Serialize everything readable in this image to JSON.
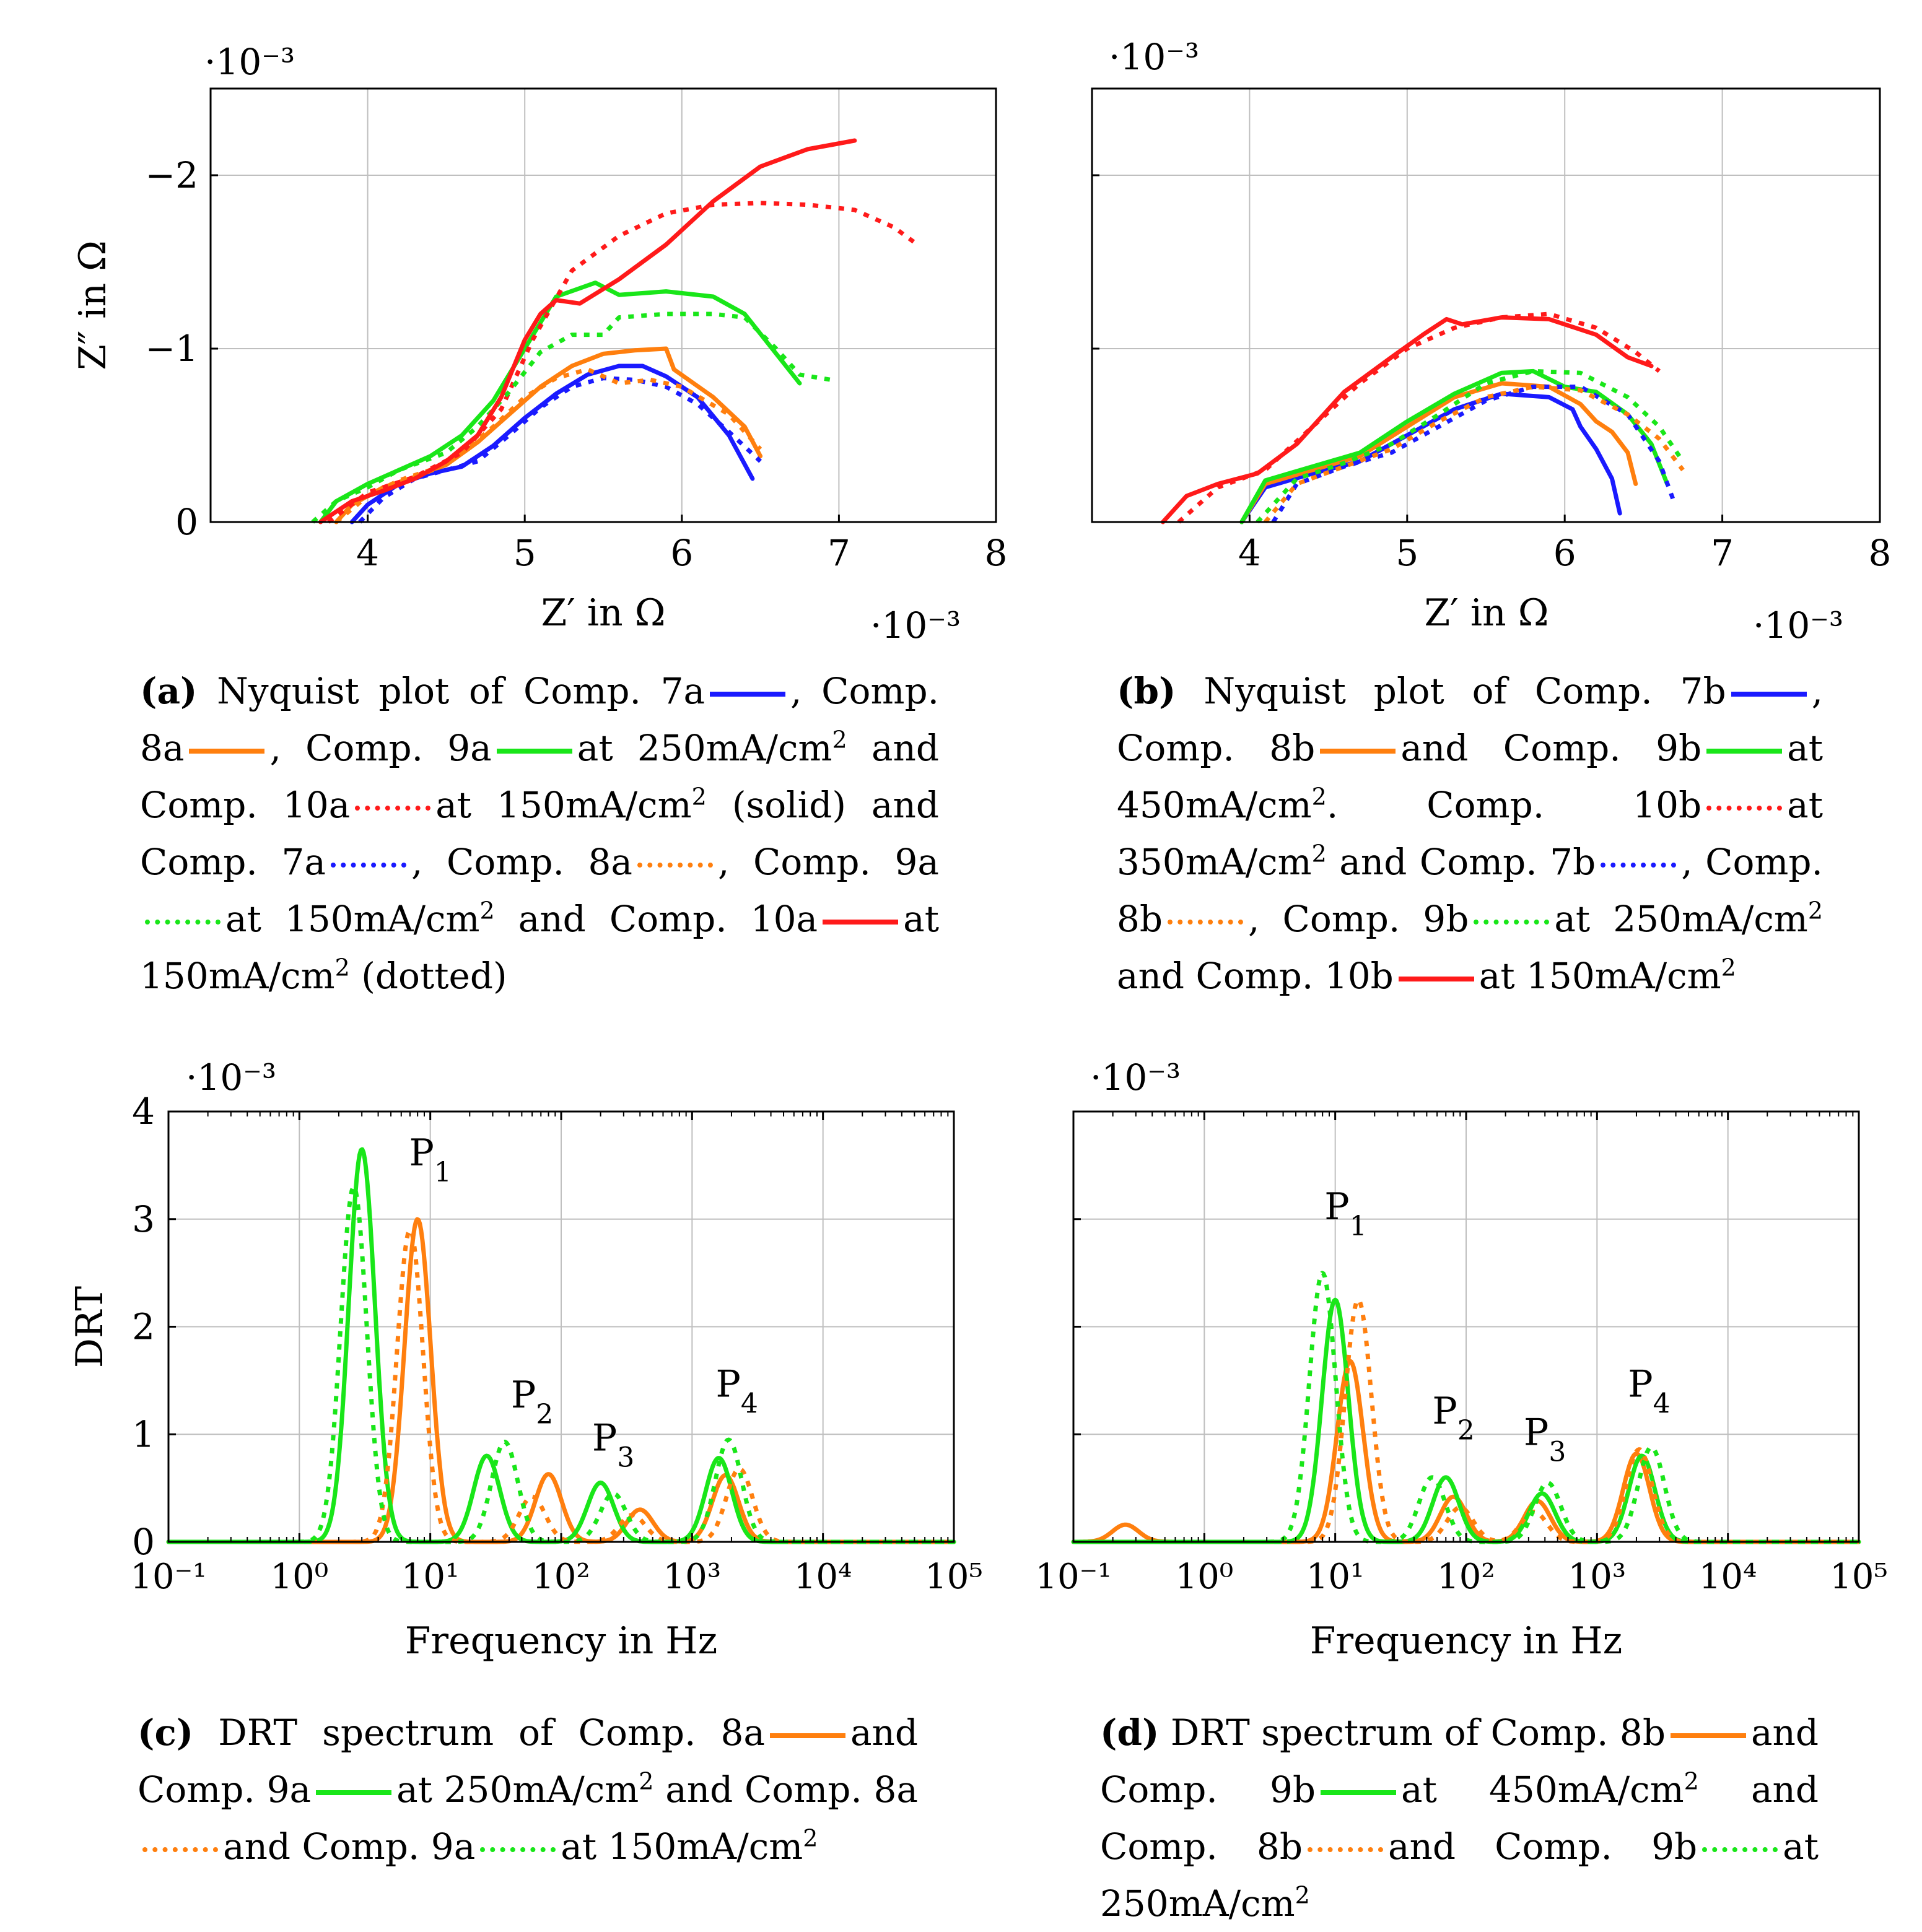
{
  "colors": {
    "blue": "#1a1aff",
    "orange": "#ff7f0e",
    "green": "#19e619",
    "red": "#ff1a1a"
  },
  "panels": [
    {
      "id": "a",
      "ylabel": "Z″ in Ω",
      "xlabel": "Z′ in Ω",
      "ymult": "·10⁻³",
      "xmult": "·10⁻³",
      "yticks": [
        "0",
        "−1",
        "−2"
      ],
      "xticks": [
        "4",
        "5",
        "6",
        "7",
        "8"
      ]
    },
    {
      "id": "b",
      "ylabel": "",
      "xlabel": "Z′ in Ω",
      "ymult": "·10⁻³",
      "xmult": "·10⁻³",
      "yticks": [],
      "xticks": [
        "4",
        "5",
        "6",
        "7",
        "8"
      ]
    },
    {
      "id": "c",
      "ylabel": "DRT",
      "xlabel": "Frequency in Hz",
      "ymult": "·10⁻³",
      "yticks": [
        "0",
        "1",
        "2",
        "3",
        "4"
      ],
      "xticks": [
        "10⁻¹",
        "10⁰",
        "10¹",
        "10²",
        "10³",
        "10⁴",
        "10⁵"
      ],
      "peaks": [
        "P1",
        "P2",
        "P3",
        "P4"
      ]
    },
    {
      "id": "d",
      "ylabel": "",
      "xlabel": "Frequency in Hz",
      "ymult": "·10⁻³",
      "yticks": [],
      "xticks": [
        "10⁻¹",
        "10⁰",
        "10¹",
        "10²",
        "10³",
        "10⁴",
        "10⁵"
      ],
      "peaks": [
        "P1",
        "P2",
        "P3",
        "P4"
      ]
    }
  ],
  "captions": {
    "a": {
      "tag": "(a)",
      "t1": "Nyquist plot of Comp. 7a",
      "t2": ", Comp. 8a",
      "t3": ", Comp. 9a",
      "t4": "at 250mA/cm",
      "t5": "and Comp. 10a",
      "t6": "at 150mA/cm",
      "t7": "(solid) and Comp. 7a",
      "t8": ", Comp. 8a",
      "t9": ", Comp. 9a",
      "t10": "at 150mA/cm",
      "t11": "and Comp. 10a",
      "t12": "at 150mA/cm",
      "t13": "(dotted)",
      "sup": "2"
    },
    "b": {
      "tag": "(b)",
      "t1": "Nyquist plot of Comp. 7b",
      "t2": ", Comp. 8b",
      "t3": "and Comp. 9b",
      "t4": "at 450mA/cm",
      "t5": ". Comp. 10b",
      "t6": "at 350mA/cm",
      "t7": "and Comp. 7b",
      "t8": ", Comp. 8b",
      "t9": ", Comp. 9b",
      "t10": "at 250mA/cm",
      "t11": "and Comp. 10b",
      "t12": "at 150mA/cm",
      "sup": "2"
    },
    "c": {
      "tag": "(c)",
      "t1": "DRT spectrum of Comp. 8a",
      "t2": "and Comp. 9a",
      "t3": "at 250mA/cm",
      "t4": "and Comp. 8a",
      "t5": "and Comp. 9a",
      "t6": "at 150mA/cm",
      "sup": "2"
    },
    "d": {
      "tag": "(d)",
      "t1": "DRT spectrum of Comp. 8b",
      "t2": "and Comp. 9b",
      "t3": "at 450mA/cm",
      "t4": "and Comp. 8b",
      "t5": "and Comp. 9b",
      "t6": "at 250mA/cm",
      "sup": "2"
    }
  },
  "chart_data": [
    {
      "type": "line",
      "panel": "a",
      "xlabel": "Z′ in Ω",
      "ylabel": "Z″ in Ω",
      "xlim": [
        3.0,
        8.0
      ],
      "ylim": [
        0,
        -2.5
      ],
      "grid": true,
      "series": [
        {
          "name": "Comp. 7a",
          "style": "solid",
          "color": "blue",
          "x": [
            3.9,
            4.0,
            4.2,
            4.4,
            4.6,
            4.8,
            5.0,
            5.2,
            5.4,
            5.6,
            5.75,
            5.9,
            6.1,
            6.3,
            6.45
          ],
          "y": [
            0,
            -0.1,
            -0.22,
            -0.28,
            -0.32,
            -0.44,
            -0.6,
            -0.74,
            -0.85,
            -0.9,
            -0.9,
            -0.84,
            -0.72,
            -0.5,
            -0.25
          ]
        },
        {
          "name": "Comp. 8a",
          "style": "solid",
          "color": "orange",
          "x": [
            3.8,
            3.9,
            4.1,
            4.3,
            4.5,
            4.7,
            4.9,
            5.1,
            5.3,
            5.5,
            5.7,
            5.9,
            5.95,
            6.2,
            6.4,
            6.5
          ],
          "y": [
            0,
            -0.1,
            -0.2,
            -0.26,
            -0.33,
            -0.46,
            -0.62,
            -0.78,
            -0.9,
            -0.97,
            -0.99,
            -1.0,
            -0.88,
            -0.72,
            -0.55,
            -0.38
          ]
        },
        {
          "name": "Comp. 9a",
          "style": "solid",
          "color": "green",
          "x": [
            3.7,
            3.8,
            4.0,
            4.2,
            4.4,
            4.6,
            4.8,
            5.0,
            5.2,
            5.45,
            5.6,
            5.9,
            6.2,
            6.4,
            6.75
          ],
          "y": [
            0,
            -0.12,
            -0.22,
            -0.3,
            -0.38,
            -0.5,
            -0.7,
            -1.0,
            -1.3,
            -1.38,
            -1.31,
            -1.33,
            -1.3,
            -1.2,
            -0.8
          ]
        },
        {
          "name": "Comp. 10a",
          "style": "dotted",
          "color": "red",
          "x": [
            3.75,
            4.0,
            4.3,
            4.6,
            4.85,
            5.05,
            5.3,
            5.6,
            5.9,
            6.2,
            6.5,
            6.8,
            7.1,
            7.35,
            7.5
          ],
          "y": [
            0,
            -0.17,
            -0.26,
            -0.4,
            -0.65,
            -1.05,
            -1.45,
            -1.65,
            -1.78,
            -1.83,
            -1.84,
            -1.83,
            -1.8,
            -1.7,
            -1.6
          ]
        },
        {
          "name": "Comp. 7a",
          "style": "dotted",
          "color": "blue",
          "x": [
            3.95,
            4.1,
            4.3,
            4.5,
            4.7,
            4.9,
            5.1,
            5.3,
            5.5,
            5.7,
            5.9,
            6.1,
            6.3,
            6.5
          ],
          "y": [
            0,
            -0.14,
            -0.25,
            -0.3,
            -0.35,
            -0.5,
            -0.66,
            -0.78,
            -0.83,
            -0.82,
            -0.78,
            -0.68,
            -0.52,
            -0.35
          ]
        },
        {
          "name": "Comp. 8a",
          "style": "dotted",
          "color": "orange",
          "x": [
            3.8,
            4.0,
            4.2,
            4.4,
            4.6,
            4.8,
            5.0,
            5.2,
            5.4,
            5.6,
            5.8,
            6.0,
            6.3,
            6.5
          ],
          "y": [
            0,
            -0.15,
            -0.24,
            -0.3,
            -0.4,
            -0.55,
            -0.72,
            -0.83,
            -0.88,
            -0.8,
            -0.82,
            -0.78,
            -0.62,
            -0.42
          ]
        },
        {
          "name": "Comp. 9a",
          "style": "dotted",
          "color": "green",
          "x": [
            3.65,
            3.8,
            4.0,
            4.2,
            4.5,
            4.7,
            4.9,
            5.1,
            5.3,
            5.5,
            5.6,
            5.9,
            6.2,
            6.4,
            6.6,
            6.75,
            6.95
          ],
          "y": [
            0,
            -0.12,
            -0.2,
            -0.3,
            -0.4,
            -0.55,
            -0.75,
            -0.98,
            -1.08,
            -1.08,
            -1.18,
            -1.2,
            -1.2,
            -1.18,
            -1.0,
            -0.85,
            -0.82
          ]
        },
        {
          "name": "Comp. 10a",
          "style": "solid",
          "color": "red",
          "x": [
            3.7,
            3.9,
            4.1,
            4.3,
            4.5,
            4.7,
            4.85,
            5.0,
            5.1,
            5.2,
            5.35,
            5.6,
            5.9,
            6.2,
            6.5,
            6.8,
            7.1
          ],
          "y": [
            0,
            -0.12,
            -0.18,
            -0.25,
            -0.35,
            -0.5,
            -0.72,
            -1.05,
            -1.2,
            -1.28,
            -1.26,
            -1.4,
            -1.6,
            -1.85,
            -2.05,
            -2.15,
            -2.2
          ]
        }
      ]
    },
    {
      "type": "line",
      "panel": "b",
      "xlabel": "Z′ in Ω",
      "xlim": [
        3.0,
        8.0
      ],
      "ylim": [
        0,
        -2.5
      ],
      "grid": true,
      "series": [
        {
          "name": "Comp. 7b",
          "style": "solid",
          "color": "blue",
          "x": [
            3.95,
            4.1,
            4.4,
            4.7,
            5.0,
            5.3,
            5.6,
            5.9,
            6.05,
            6.1,
            6.2,
            6.3,
            6.35
          ],
          "y": [
            0,
            -0.2,
            -0.28,
            -0.35,
            -0.5,
            -0.65,
            -0.74,
            -0.72,
            -0.65,
            -0.55,
            -0.42,
            -0.25,
            -0.05
          ]
        },
        {
          "name": "Comp. 8b",
          "style": "solid",
          "color": "orange",
          "x": [
            3.95,
            4.1,
            4.4,
            4.7,
            5.0,
            5.3,
            5.6,
            5.9,
            6.1,
            6.2,
            6.3,
            6.4,
            6.45
          ],
          "y": [
            0,
            -0.22,
            -0.3,
            -0.38,
            -0.55,
            -0.72,
            -0.8,
            -0.78,
            -0.68,
            -0.58,
            -0.52,
            -0.4,
            -0.22
          ]
        },
        {
          "name": "Comp. 9b",
          "style": "solid",
          "color": "green",
          "x": [
            3.95,
            4.1,
            4.4,
            4.7,
            5.0,
            5.3,
            5.6,
            5.8,
            6.0,
            6.2,
            6.4,
            6.55,
            6.65
          ],
          "y": [
            0,
            -0.24,
            -0.32,
            -0.4,
            -0.58,
            -0.74,
            -0.86,
            -0.87,
            -0.78,
            -0.75,
            -0.62,
            -0.45,
            -0.22
          ]
        },
        {
          "name": "Comp. 10b",
          "style": "dotted",
          "color": "red",
          "x": [
            3.55,
            3.8,
            4.1,
            4.4,
            4.7,
            5.0,
            5.3,
            5.6,
            5.9,
            6.2,
            6.45,
            6.6
          ],
          "y": [
            0,
            -0.2,
            -0.3,
            -0.55,
            -0.8,
            -1.0,
            -1.12,
            -1.18,
            -1.2,
            -1.12,
            -0.98,
            -0.87
          ]
        },
        {
          "name": "Comp. 7b",
          "style": "dotted",
          "color": "blue",
          "x": [
            4.15,
            4.3,
            4.6,
            4.9,
            5.2,
            5.5,
            5.8,
            6.1,
            6.4,
            6.6,
            6.7
          ],
          "y": [
            0,
            -0.22,
            -0.32,
            -0.4,
            -0.55,
            -0.7,
            -0.78,
            -0.78,
            -0.62,
            -0.35,
            -0.1
          ]
        },
        {
          "name": "Comp. 8b",
          "style": "dotted",
          "color": "orange",
          "x": [
            4.1,
            4.3,
            4.6,
            4.9,
            5.2,
            5.5,
            5.8,
            6.1,
            6.4,
            6.6,
            6.75
          ],
          "y": [
            0,
            -0.22,
            -0.32,
            -0.42,
            -0.58,
            -0.72,
            -0.78,
            -0.76,
            -0.62,
            -0.48,
            -0.3
          ]
        },
        {
          "name": "Comp. 9b",
          "style": "dotted",
          "color": "green",
          "x": [
            4.05,
            4.3,
            4.6,
            4.9,
            5.2,
            5.5,
            5.8,
            6.1,
            6.4,
            6.6,
            6.75
          ],
          "y": [
            0,
            -0.25,
            -0.34,
            -0.45,
            -0.62,
            -0.8,
            -0.87,
            -0.86,
            -0.72,
            -0.55,
            -0.35
          ]
        },
        {
          "name": "Comp. 10b",
          "style": "solid",
          "color": "red",
          "x": [
            3.45,
            3.6,
            3.8,
            4.05,
            4.3,
            4.6,
            4.9,
            5.1,
            5.25,
            5.35,
            5.6,
            5.9,
            6.2,
            6.4,
            6.55
          ],
          "y": [
            0,
            -0.15,
            -0.22,
            -0.28,
            -0.45,
            -0.75,
            -0.95,
            -1.08,
            -1.17,
            -1.14,
            -1.18,
            -1.17,
            -1.08,
            -0.95,
            -0.9
          ]
        }
      ]
    },
    {
      "type": "line",
      "panel": "c",
      "xlabel": "Frequency in Hz",
      "ylabel": "DRT",
      "xscale": "log",
      "xlim": [
        0.1,
        100000
      ],
      "ylim": [
        0,
        4
      ],
      "grid": true,
      "series": [
        {
          "name": "Comp. 8a",
          "style": "solid",
          "color": "orange",
          "peaks": [
            [
              8,
              3.0
            ],
            [
              80,
              0.63
            ],
            [
              400,
              0.3
            ],
            [
              1800,
              0.62
            ]
          ]
        },
        {
          "name": "Comp. 9a",
          "style": "solid",
          "color": "green",
          "peaks": [
            [
              3,
              3.65
            ],
            [
              27,
              0.8
            ],
            [
              200,
              0.55
            ],
            [
              1600,
              0.78
            ]
          ]
        },
        {
          "name": "Comp. 8a",
          "style": "dotted",
          "color": "orange",
          "peaks": [
            [
              7,
              2.9
            ],
            [
              60,
              0.42
            ],
            [
              350,
              0.25
            ],
            [
              2300,
              0.68
            ]
          ]
        },
        {
          "name": "Comp. 9a",
          "style": "dotted",
          "color": "green",
          "peaks": [
            [
              2.6,
              3.3
            ],
            [
              37,
              0.93
            ],
            [
              250,
              0.45
            ],
            [
              1900,
              0.95
            ]
          ]
        }
      ]
    },
    {
      "type": "line",
      "panel": "d",
      "xlabel": "Frequency in Hz",
      "xscale": "log",
      "xlim": [
        0.1,
        100000
      ],
      "ylim": [
        0,
        4
      ],
      "grid": true,
      "series": [
        {
          "name": "Comp. 8b",
          "style": "solid",
          "color": "orange",
          "peaks": [
            [
              0.25,
              0.16
            ],
            [
              13,
              1.68
            ],
            [
              80,
              0.42
            ],
            [
              350,
              0.38
            ],
            [
              2000,
              0.82
            ]
          ]
        },
        {
          "name": "Comp. 9b",
          "style": "solid",
          "color": "green",
          "peaks": [
            [
              10,
              2.25
            ],
            [
              70,
              0.6
            ],
            [
              380,
              0.45
            ],
            [
              2200,
              0.8
            ]
          ]
        },
        {
          "name": "Comp. 8b",
          "style": "dotted",
          "color": "orange",
          "peaks": [
            [
              15,
              2.25
            ],
            [
              90,
              0.32
            ],
            [
              330,
              0.28
            ],
            [
              2100,
              0.86
            ]
          ]
        },
        {
          "name": "Comp. 9b",
          "style": "dotted",
          "color": "green",
          "peaks": [
            [
              8,
              2.5
            ],
            [
              55,
              0.6
            ],
            [
              420,
              0.55
            ],
            [
              2600,
              0.88
            ]
          ]
        }
      ]
    }
  ]
}
